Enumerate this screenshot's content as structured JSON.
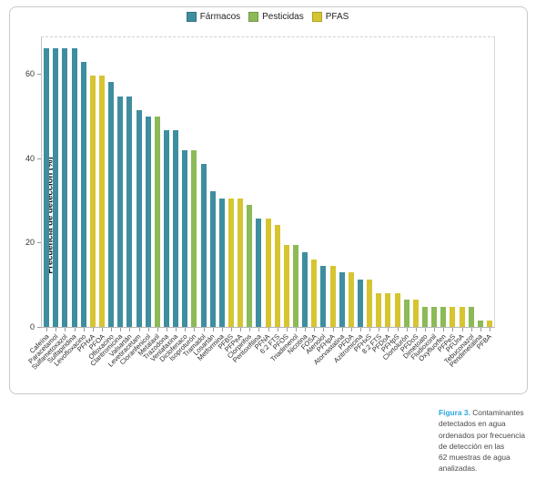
{
  "caption": {
    "label": "Figura 3.",
    "label_color": "#29a8e0",
    "text": "Contaminantes\ndetectados en agua\nordenados por frecuencia\nde detección en las\n62 muestras de agua\nanalizadas."
  },
  "chart_data": {
    "type": "bar",
    "title": "",
    "xlabel": "",
    "ylabel": "Frecuencia de detección (%)",
    "ylim": [
      0,
      68.8
    ],
    "yticks": [
      0,
      20,
      40,
      60
    ],
    "grid": false,
    "legend_position": "top-center",
    "legend": [
      {
        "name": "Fármacos",
        "color": "#3e8ea0"
      },
      {
        "name": "Pesticidas",
        "color": "#8cba57"
      },
      {
        "name": "PFAS",
        "color": "#d6c531"
      }
    ],
    "bars": [
      {
        "label": "Cafeína",
        "value": 66.1,
        "group": "Fármacos"
      },
      {
        "label": "Paracetamol",
        "value": 66.1,
        "group": "Fármacos"
      },
      {
        "label": "Sulfametoxazol",
        "value": 66.1,
        "group": "Fármacos"
      },
      {
        "label": "Sulfapiridina",
        "value": 66.1,
        "group": "Fármacos"
      },
      {
        "label": "Levofloxacino",
        "value": 62.9,
        "group": "Fármacos"
      },
      {
        "label": "PFHxA",
        "value": 59.7,
        "group": "PFAS"
      },
      {
        "label": "PFOA",
        "value": 59.7,
        "group": "PFAS"
      },
      {
        "label": "Ofloxacino",
        "value": 58.1,
        "group": "Fármacos"
      },
      {
        "label": "Claritromicina",
        "value": 54.8,
        "group": "Fármacos"
      },
      {
        "label": "Valsartán",
        "value": 54.8,
        "group": "Fármacos"
      },
      {
        "label": "Levetiracetam",
        "value": 51.6,
        "group": "Fármacos"
      },
      {
        "label": "Cloranfenicol",
        "value": 50.0,
        "group": "Fármacos"
      },
      {
        "label": "Metalaxil",
        "value": 50.0,
        "group": "Pesticidas"
      },
      {
        "label": "Trazodona",
        "value": 46.8,
        "group": "Fármacos"
      },
      {
        "label": "Venlafaxina",
        "value": 46.8,
        "group": "Fármacos"
      },
      {
        "label": "Diclofenaco",
        "value": 41.9,
        "group": "Fármacos"
      },
      {
        "label": "Isoproturón",
        "value": 41.9,
        "group": "Pesticidas"
      },
      {
        "label": "Tramadol",
        "value": 38.7,
        "group": "Fármacos"
      },
      {
        "label": "Losartán",
        "value": 32.3,
        "group": "Fármacos"
      },
      {
        "label": "Metformina",
        "value": 30.6,
        "group": "Fármacos"
      },
      {
        "label": "PFBS",
        "value": 30.6,
        "group": "PFAS"
      },
      {
        "label": "PFPeA",
        "value": 30.6,
        "group": "PFAS"
      },
      {
        "label": "Clorpirifos",
        "value": 29.0,
        "group": "Pesticidas"
      },
      {
        "label": "Pentoxifilina",
        "value": 25.8,
        "group": "Fármacos"
      },
      {
        "label": "PFNA",
        "value": 25.8,
        "group": "PFAS"
      },
      {
        "label": "6:2 FTS",
        "value": 24.2,
        "group": "PFAS"
      },
      {
        "label": "PFOS",
        "value": 19.4,
        "group": "PFAS"
      },
      {
        "label": "Triadimenol",
        "value": 19.4,
        "group": "Pesticidas"
      },
      {
        "label": "Nicotina",
        "value": 17.7,
        "group": "Fármacos"
      },
      {
        "label": "FOSA",
        "value": 16.1,
        "group": "PFAS"
      },
      {
        "label": "Atenolol",
        "value": 14.5,
        "group": "Fármacos"
      },
      {
        "label": "PFHpA",
        "value": 14.5,
        "group": "PFAS"
      },
      {
        "label": "Atorvastatina",
        "value": 12.9,
        "group": "Fármacos"
      },
      {
        "label": "PFDA",
        "value": 12.9,
        "group": "PFAS"
      },
      {
        "label": "Azitromicina",
        "value": 11.3,
        "group": "Fármacos"
      },
      {
        "label": "PFHxS",
        "value": 11.3,
        "group": "PFAS"
      },
      {
        "label": "8:2 FTS",
        "value": 8.1,
        "group": "PFAS"
      },
      {
        "label": "PFDoA",
        "value": 8.1,
        "group": "PFAS"
      },
      {
        "label": "PFHpS",
        "value": 8.1,
        "group": "PFAS"
      },
      {
        "label": "Clortolurón",
        "value": 6.5,
        "group": "Pesticidas"
      },
      {
        "label": "PFDoS",
        "value": 6.5,
        "group": "PFAS"
      },
      {
        "label": "Dimetoato",
        "value": 4.8,
        "group": "Pesticidas"
      },
      {
        "label": "Fludioxonil",
        "value": 4.8,
        "group": "Pesticidas"
      },
      {
        "label": "Oxyfluorfen",
        "value": 4.8,
        "group": "Pesticidas"
      },
      {
        "label": "PFPeS",
        "value": 4.8,
        "group": "PFAS"
      },
      {
        "label": "PFUnA",
        "value": 4.8,
        "group": "PFAS"
      },
      {
        "label": "Tebuconazol",
        "value": 4.8,
        "group": "Pesticidas"
      },
      {
        "label": "Pendimetalina",
        "value": 1.6,
        "group": "Pesticidas"
      },
      {
        "label": "PFBA",
        "value": 1.6,
        "group": "PFAS"
      }
    ]
  }
}
